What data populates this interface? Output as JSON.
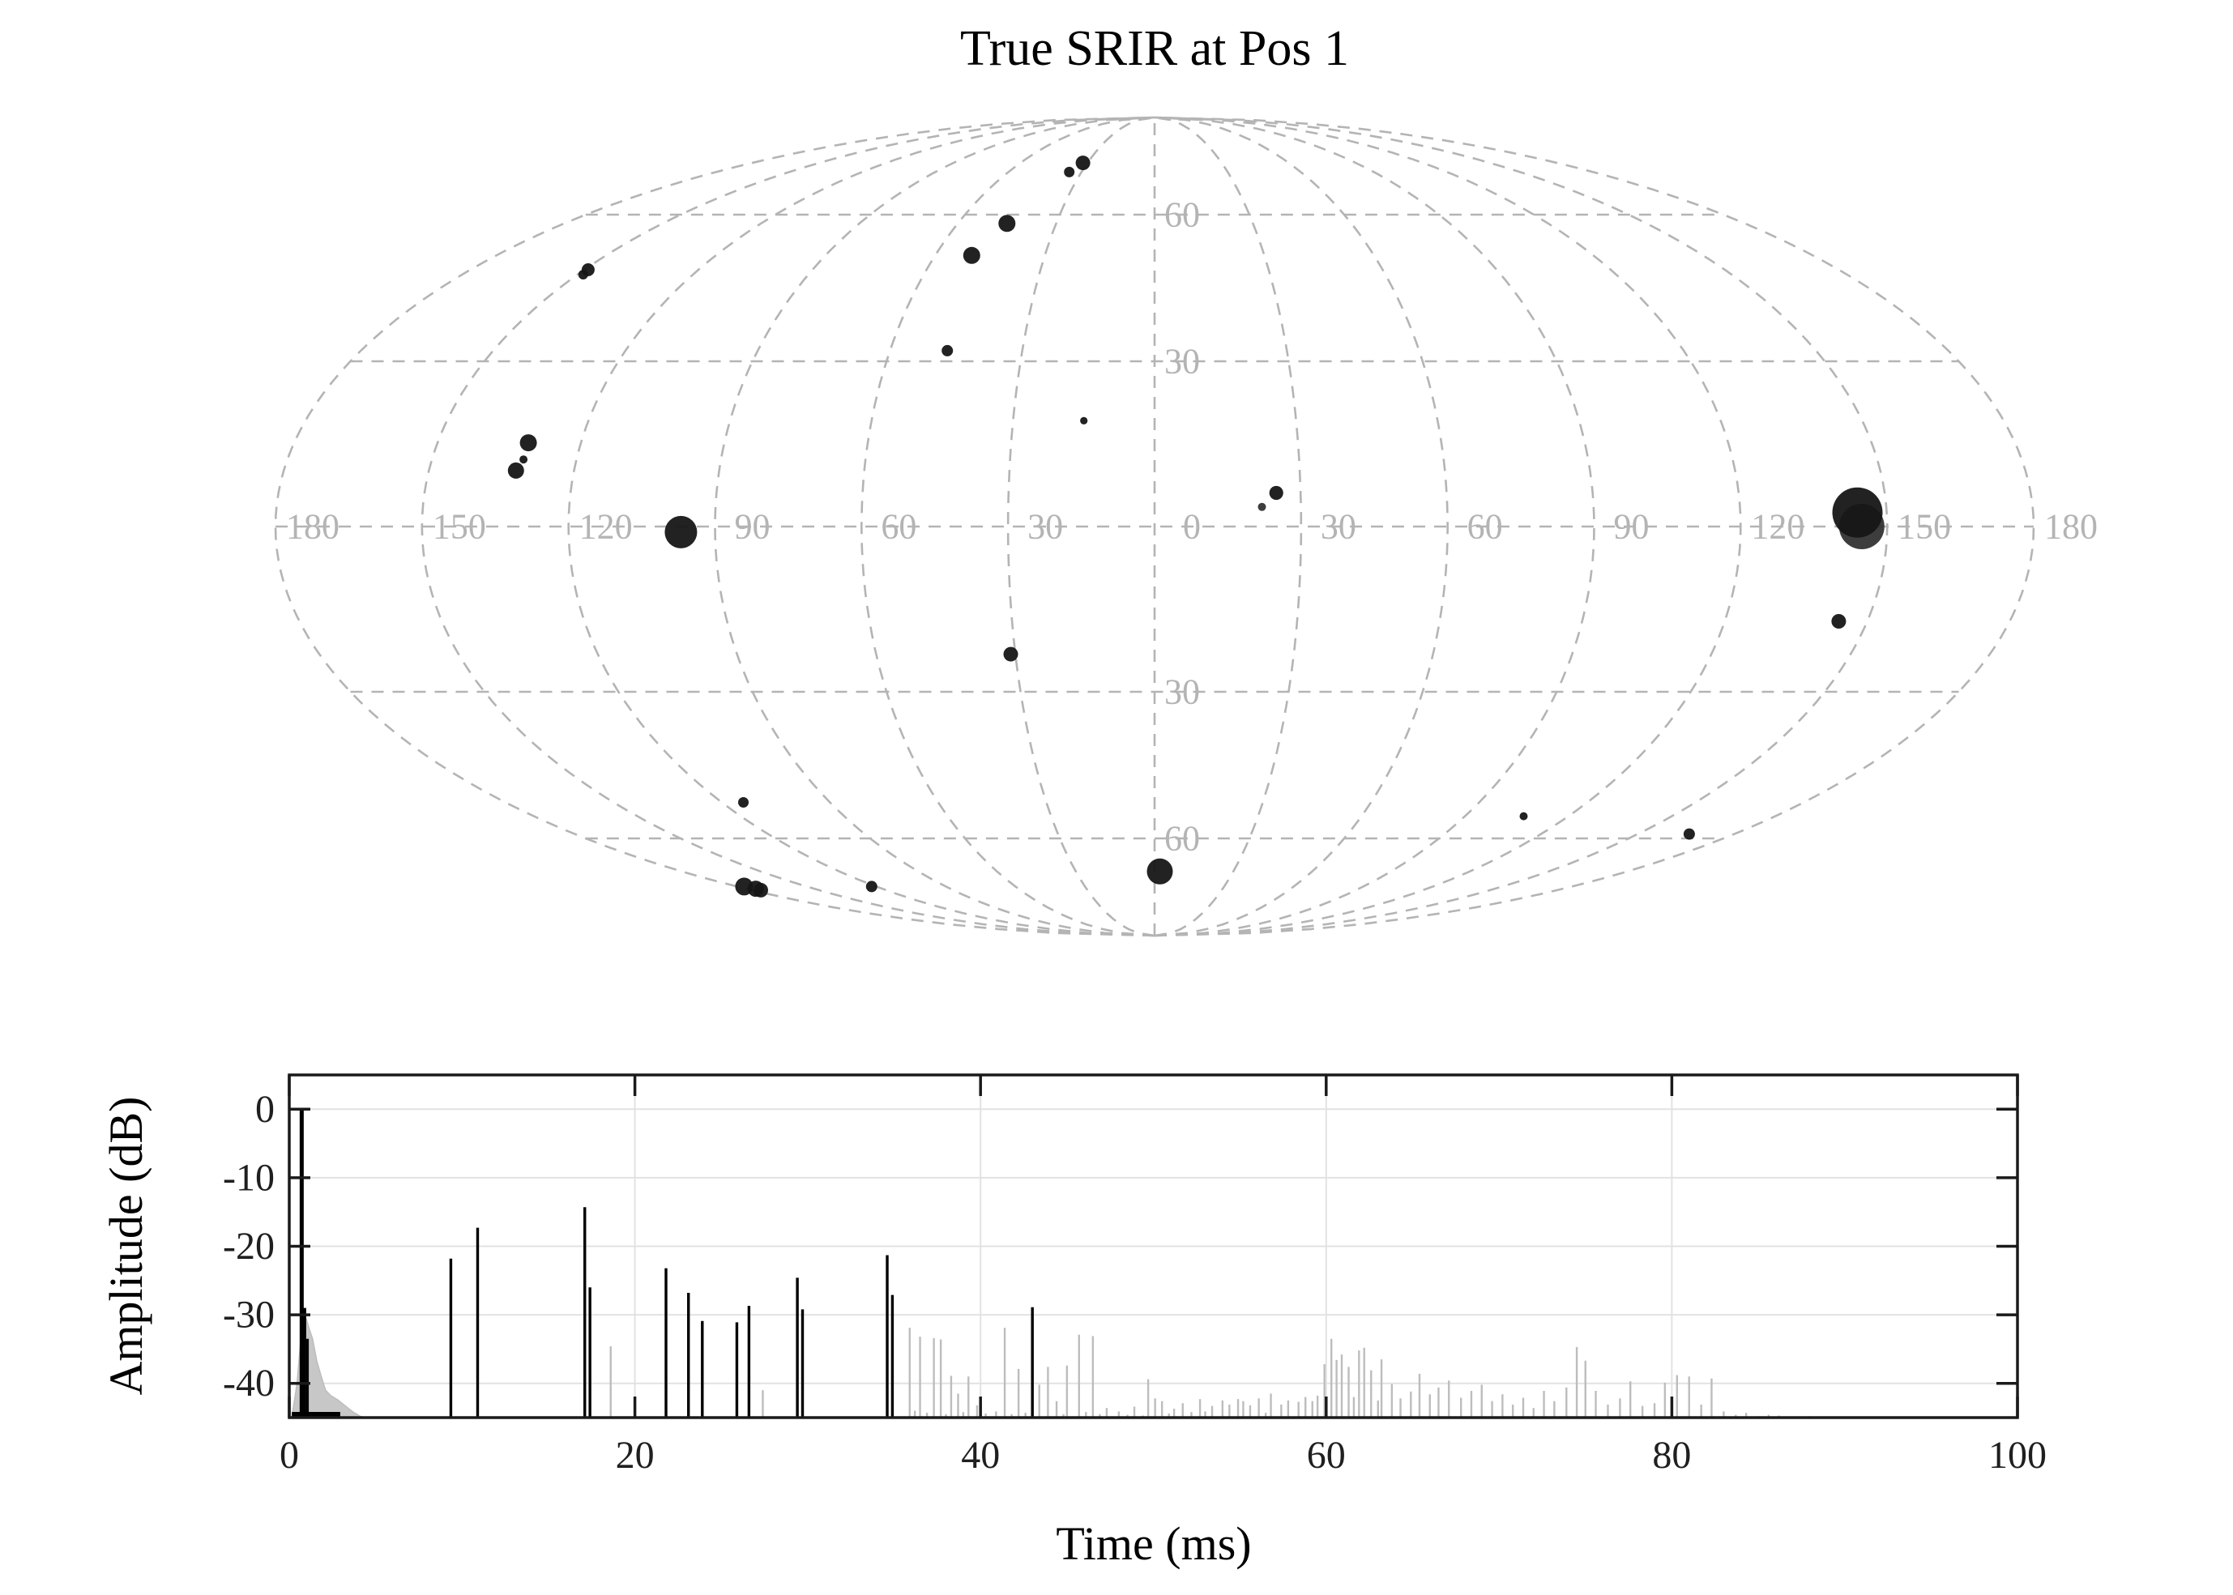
{
  "figure": {
    "title": "True SRIR at Pos 1",
    "background": "#ffffff"
  },
  "colors": {
    "graticule_gray": "#b4b4b4",
    "map_label_gray": "#b4b4b4",
    "marker_black": "#161616",
    "marker_shadow": "#333333",
    "stem_black": "#000000",
    "stem_gray": "#bdbdbd",
    "plot_gridline": "#e2e2e2",
    "axis_black": "#1a1a1a",
    "tick_label_color": "#1f1f1f",
    "envelope_gray": "#c7c7c7"
  },
  "chart_data": [
    {
      "type": "scatter",
      "projection": "mollweide",
      "title": "True SRIR at Pos 1",
      "x_is": "azimuth_deg",
      "y_is": "elevation_deg",
      "grid": {
        "lon_step": 30,
        "lat_lines": [
          -60,
          -30,
          0,
          30,
          60
        ],
        "style": "dashed",
        "legend": "off"
      },
      "equator_lon_labels": [
        "180",
        "150",
        "120",
        "90",
        "60",
        "30",
        "0",
        "30",
        "60",
        "90",
        "120",
        "150",
        "180"
      ],
      "equator_lon_values": [
        -180,
        -150,
        -120,
        -90,
        -60,
        -30,
        0,
        30,
        60,
        90,
        120,
        150,
        180
      ],
      "meridian_lat_labels": [
        {
          "lat": 60,
          "text": "60"
        },
        {
          "lat": 30,
          "text": "30"
        },
        {
          "lat": -30,
          "text": "30"
        },
        {
          "lat": -60,
          "text": "60"
        }
      ],
      "points": [
        {
          "az": -32,
          "el": 73,
          "r": 9
        },
        {
          "az": -35,
          "el": 70.5,
          "r": 6.5
        },
        {
          "az": -45,
          "el": 58,
          "r": 10.5
        },
        {
          "az": -50,
          "el": 51,
          "r": 10.5
        },
        {
          "az": -47,
          "el": 32,
          "r": 7
        },
        {
          "az": -15,
          "el": 19,
          "r": 4.6
        },
        {
          "az": 22,
          "el": 3.5,
          "r": 5,
          "shade": true
        },
        {
          "az": 25,
          "el": 6,
          "r": 8.6
        },
        {
          "az": -149,
          "el": 48,
          "r": 8
        },
        {
          "az": -148.5,
          "el": 47,
          "r": 6
        },
        {
          "az": -131,
          "el": 15,
          "r": 10.5
        },
        {
          "az": -131,
          "el": 12,
          "r": 5
        },
        {
          "az": -132,
          "el": 10,
          "r": 10
        },
        {
          "az": -97,
          "el": -1,
          "r": 20
        },
        {
          "az": -31,
          "el": -23,
          "r": 9
        },
        {
          "az": -114,
          "el": -52,
          "r": 6.5
        },
        {
          "az": -177,
          "el": -72,
          "r": 11
        },
        {
          "az": -175.7,
          "el": -72.6,
          "r": 10
        },
        {
          "az": -176,
          "el": -73,
          "r": 9
        },
        {
          "az": -122,
          "el": -72,
          "r": 7
        },
        {
          "az": 2,
          "el": -68,
          "r": 16
        },
        {
          "az": 107,
          "el": -55,
          "r": 5
        },
        {
          "az": 166,
          "el": -59,
          "r": 7
        },
        {
          "az": 144,
          "el": -17,
          "r": 9
        },
        {
          "az": 144.8,
          "el": 0,
          "r": 28,
          "shade": true
        },
        {
          "az": 144,
          "el": 2.5,
          "r": 31
        }
      ]
    },
    {
      "type": "stem",
      "xlabel": "Time (ms)",
      "ylabel": "Amplitude (dB)",
      "xlim": [
        0,
        100
      ],
      "ylim": [
        -45,
        5
      ],
      "xticks": [
        0,
        20,
        40,
        60,
        80,
        100
      ],
      "yticks": [
        0,
        -10,
        -20,
        -30,
        -40
      ],
      "xtick_labels": [
        "0",
        "20",
        "40",
        "60",
        "80",
        "100"
      ],
      "ytick_labels": [
        "0",
        "-10",
        "-20",
        "-30",
        "-40"
      ],
      "grid_x": [
        20,
        40,
        60,
        80
      ],
      "early_base": [
        0.15,
        2.95
      ],
      "early_envelope": [
        [
          0.15,
          -45
        ],
        [
          0.45,
          -40
        ],
        [
          0.65,
          -34
        ],
        [
          0.85,
          -31.2
        ],
        [
          1.0,
          -30.7
        ],
        [
          1.15,
          -32
        ],
        [
          1.35,
          -33.5
        ],
        [
          1.6,
          -36.8
        ],
        [
          1.85,
          -39
        ],
        [
          2.1,
          -41
        ],
        [
          2.4,
          -41.8
        ],
        [
          2.8,
          -42.4
        ],
        [
          3.2,
          -43.2
        ],
        [
          3.7,
          -44.2
        ],
        [
          4.1,
          -44.8
        ],
        [
          4.4,
          -45
        ]
      ],
      "black_stems": [
        [
          0.72,
          0
        ],
        [
          0.9,
          -29
        ],
        [
          1.05,
          -33.5
        ],
        [
          9.35,
          -21.8
        ],
        [
          10.9,
          -17.3
        ],
        [
          17.1,
          -14.3
        ],
        [
          17.4,
          -26
        ],
        [
          21.8,
          -23.2
        ],
        [
          23.1,
          -26.8
        ],
        [
          23.9,
          -30.9
        ],
        [
          25.9,
          -31.1
        ],
        [
          26.6,
          -28.7
        ],
        [
          29.4,
          -24.6
        ],
        [
          29.7,
          -29.2
        ],
        [
          34.6,
          -21.3
        ],
        [
          34.9,
          -27.1
        ],
        [
          43.0,
          -28.9
        ]
      ],
      "gray_stems": [
        [
          18.6,
          -34.6
        ],
        [
          27.4,
          -41
        ],
        [
          35.9,
          -31.9
        ],
        [
          36.2,
          -44
        ],
        [
          36.5,
          -33.2
        ],
        [
          36.9,
          -44.3
        ],
        [
          37.3,
          -33.4
        ],
        [
          37.7,
          -33.6
        ],
        [
          38.0,
          -44.5
        ],
        [
          38.3,
          -38.9
        ],
        [
          38.7,
          -41.5
        ],
        [
          39.0,
          -44.2
        ],
        [
          39.3,
          -39.0
        ],
        [
          39.8,
          -43.2
        ],
        [
          40.3,
          -44.4
        ],
        [
          40.9,
          -44.1
        ],
        [
          41.4,
          -31.9
        ],
        [
          41.8,
          -44.5
        ],
        [
          42.2,
          -37.9
        ],
        [
          42.6,
          -44.3
        ],
        [
          43.4,
          -40.2
        ],
        [
          43.9,
          -37.6
        ],
        [
          44.4,
          -42.6
        ],
        [
          44.8,
          -44.5
        ],
        [
          45.0,
          -37.4
        ],
        [
          45.7,
          -32.9
        ],
        [
          46.1,
          -44.2
        ],
        [
          46.5,
          -33.1
        ],
        [
          46.9,
          -44.5
        ],
        [
          47.3,
          -43.6
        ],
        [
          48.0,
          -44.1
        ],
        [
          48.5,
          -44.6
        ],
        [
          48.9,
          -43.4
        ],
        [
          49.4,
          -44.7
        ],
        [
          49.7,
          -39.4
        ],
        [
          50.1,
          -42.2
        ],
        [
          50.5,
          -42.6
        ],
        [
          50.9,
          -44.4
        ],
        [
          51.2,
          -43.7
        ],
        [
          51.7,
          -42.9
        ],
        [
          52.2,
          -44.2
        ],
        [
          52.7,
          -42.3
        ],
        [
          53.0,
          -44.1
        ],
        [
          53.4,
          -43.3
        ],
        [
          54.0,
          -42.5
        ],
        [
          54.4,
          -43.1
        ],
        [
          54.9,
          -42.3
        ],
        [
          55.2,
          -42.6
        ],
        [
          55.6,
          -43.2
        ],
        [
          56.1,
          -42.2
        ],
        [
          56.5,
          -44.3
        ],
        [
          56.8,
          -41.5
        ],
        [
          57.4,
          -43.1
        ],
        [
          57.8,
          -42.5
        ],
        [
          58.4,
          -42.7
        ],
        [
          58.8,
          -42.0
        ],
        [
          59.2,
          -42.6
        ],
        [
          59.5,
          -41.8
        ],
        [
          59.9,
          -37.2
        ],
        [
          60.3,
          -33.5
        ],
        [
          60.6,
          -36.6
        ],
        [
          60.9,
          -35.8
        ],
        [
          61.3,
          -37.6
        ],
        [
          61.6,
          -42
        ],
        [
          61.9,
          -35.2
        ],
        [
          62.2,
          -34.8
        ],
        [
          62.6,
          -38.1
        ],
        [
          63.0,
          -42.5
        ],
        [
          63.2,
          -36.5
        ],
        [
          63.8,
          -40.1
        ],
        [
          64.3,
          -42.2
        ],
        [
          64.9,
          -41.2
        ],
        [
          65.4,
          -38.6
        ],
        [
          66.0,
          -41.6
        ],
        [
          66.5,
          -40.6
        ],
        [
          67.1,
          -39.6
        ],
        [
          67.8,
          -42.1
        ],
        [
          68.4,
          -41.1
        ],
        [
          69.0,
          -40.2
        ],
        [
          69.6,
          -42.6
        ],
        [
          70.2,
          -41.6
        ],
        [
          70.8,
          -43.1
        ],
        [
          71.4,
          -42.1
        ],
        [
          72.0,
          -43.6
        ],
        [
          72.6,
          -41.1
        ],
        [
          73.2,
          -42.6
        ],
        [
          73.9,
          -40.6
        ],
        [
          74.5,
          -34.7
        ],
        [
          75.0,
          -36.7
        ],
        [
          75.6,
          -41.1
        ],
        [
          76.3,
          -43.1
        ],
        [
          77.0,
          -42.2
        ],
        [
          77.6,
          -39.7
        ],
        [
          78.3,
          -43.3
        ],
        [
          79.0,
          -42.9
        ],
        [
          79.6,
          -39.9
        ],
        [
          80.3,
          -38.8
        ],
        [
          81.0,
          -39.0
        ],
        [
          81.7,
          -43.1
        ],
        [
          82.3,
          -39.3
        ],
        [
          83.0,
          -44.1
        ],
        [
          83.7,
          -44.6
        ],
        [
          84.3,
          -44.3
        ],
        [
          85.0,
          -44.8
        ],
        [
          85.6,
          -44.6
        ],
        [
          86.2,
          -44.7
        ],
        [
          87.0,
          -44.9
        ],
        [
          88.0,
          -44.8
        ],
        [
          89.5,
          -44.9
        ]
      ]
    }
  ]
}
